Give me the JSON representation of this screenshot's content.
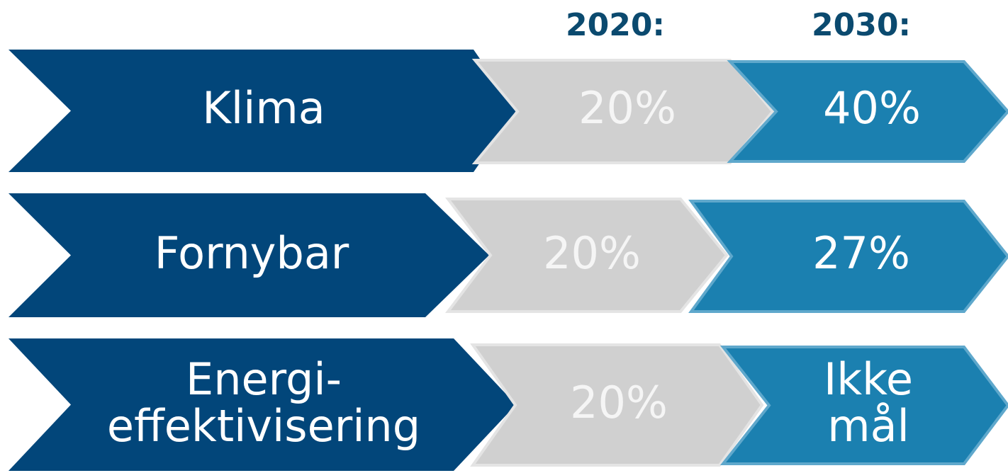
{
  "header": {
    "columns": [
      "2020:",
      "2030:"
    ]
  },
  "rows": [
    {
      "label": [
        "Klima"
      ],
      "target_2020": [
        "20%"
      ],
      "target_2030": [
        "40%"
      ]
    },
    {
      "label": [
        "Fornybar"
      ],
      "target_2020": [
        "20%"
      ],
      "target_2030": [
        "27%"
      ]
    },
    {
      "label": [
        "Energi-",
        "effektivisering"
      ],
      "target_2020": [
        "20%"
      ],
      "target_2030": [
        "Ikke",
        "mål"
      ]
    }
  ]
}
